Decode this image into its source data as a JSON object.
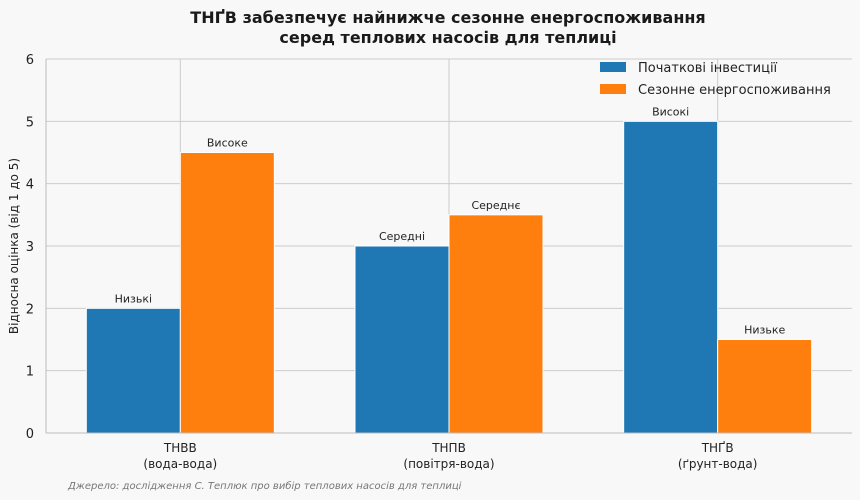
{
  "chart_data": {
    "type": "bar",
    "title_lines": [
      "ТНҐВ забезпечує найнижче сезонне енергоспоживання",
      "серед теплових насосів для теплиці"
    ],
    "ylabel": "Відносна оцінка (від 1 до 5)",
    "xlabel": "",
    "ylim": [
      0,
      6
    ],
    "yticks": [
      "0",
      "1",
      "2",
      "3",
      "4",
      "5",
      "6"
    ],
    "grid": true,
    "legend_position": "top-right",
    "categories": [
      {
        "line1": "ТНВВ",
        "line2": "(вода-вода)"
      },
      {
        "line1": "ТНПВ",
        "line2": "(повітря-вода)"
      },
      {
        "line1": "ТНҐВ",
        "line2": "(ґрунт-вода)"
      }
    ],
    "series": [
      {
        "name": "Початкові інвестиції",
        "color": "#1f77b4",
        "values": [
          2,
          3,
          5
        ],
        "labels": [
          "Низькі",
          "Середні",
          "Високі"
        ]
      },
      {
        "name": "Сезонне енергоспоживання",
        "color": "#ff7f0e",
        "values": [
          4.5,
          3.5,
          1.5
        ],
        "labels": [
          "Високе",
          "Середнє",
          "Низьке"
        ]
      }
    ],
    "source": "Джерело: дослідження С. Теплюк про вибір теплових насосів для теплиці"
  }
}
